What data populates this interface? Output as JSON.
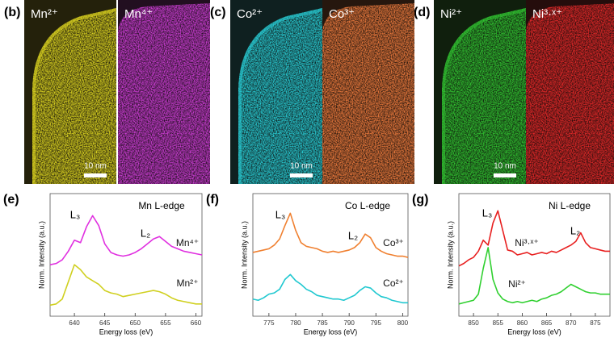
{
  "maps": [
    {
      "panel_label": "(b)",
      "images": [
        {
          "label": "Mn²⁺",
          "color": "#d8d020"
        },
        {
          "label": "Mn⁴⁺",
          "color": "#c83cd0"
        }
      ],
      "scale_bar": "10 nm"
    },
    {
      "panel_label": "(c)",
      "images": [
        {
          "label": "Co²⁺",
          "color": "#28c8d0"
        },
        {
          "label": "Co³⁺",
          "color": "#e8783c"
        }
      ],
      "scale_bar": "10 nm"
    },
    {
      "panel_label": "(d)",
      "images": [
        {
          "label": "Ni²⁺",
          "color": "#30c030"
        },
        {
          "label": "Ni³·ˣ⁺",
          "color": "#e02828"
        }
      ],
      "scale_bar": "10 nm"
    }
  ],
  "chart_data": [
    {
      "type": "line",
      "panel_label": "(e)",
      "title": "Mn L-edge",
      "x_label": "Energy loss (eV)",
      "y_label": "Norm. Intensity (a.u.)",
      "annotations": [
        "L₃",
        "L₂"
      ],
      "x": [
        636,
        637,
        638,
        639,
        640,
        641,
        642,
        643,
        644,
        645,
        646,
        647,
        648,
        649,
        650,
        651,
        652,
        653,
        654,
        655,
        656,
        657,
        658,
        659,
        660,
        661
      ],
      "xlim": [
        636,
        661
      ],
      "xticks": [
        640,
        645,
        650,
        655,
        660
      ],
      "ylim": [
        0,
        10
      ],
      "series": [
        {
          "name": "Mn⁴⁺",
          "color": "#e030e0",
          "values": [
            4.2,
            4.3,
            4.6,
            5.3,
            6.2,
            6.0,
            7.3,
            8.2,
            7.4,
            5.9,
            5.2,
            5.0,
            4.9,
            5.0,
            5.2,
            5.5,
            5.9,
            6.3,
            6.5,
            6.1,
            5.7,
            5.5,
            5.3,
            5.2,
            5.1,
            5.0
          ]
        },
        {
          "name": "Mn²⁺",
          "color": "#d0d020",
          "values": [
            0.9,
            1.0,
            1.4,
            2.8,
            4.2,
            3.8,
            3.2,
            2.9,
            2.6,
            2.1,
            1.9,
            1.8,
            1.6,
            1.7,
            1.8,
            1.9,
            2.0,
            2.1,
            2.0,
            1.8,
            1.5,
            1.3,
            1.2,
            1.1,
            1.0,
            1.0
          ]
        }
      ]
    },
    {
      "type": "line",
      "panel_label": "(f)",
      "title": "Co L-edge",
      "x_label": "Energy loss (eV)",
      "y_label": "Norm. Intensity (a.u.)",
      "annotations": [
        "L₃",
        "L₂"
      ],
      "x": [
        772,
        773,
        774,
        775,
        776,
        777,
        778,
        779,
        780,
        781,
        782,
        783,
        784,
        785,
        786,
        787,
        788,
        789,
        790,
        791,
        792,
        793,
        794,
        795,
        796,
        797,
        798,
        799,
        800,
        801
      ],
      "xlim": [
        772,
        801
      ],
      "xticks": [
        775,
        780,
        785,
        790,
        795,
        800
      ],
      "ylim": [
        0,
        10
      ],
      "series": [
        {
          "name": "Co³⁺",
          "color": "#f08030",
          "values": [
            5.2,
            5.3,
            5.4,
            5.5,
            5.8,
            6.3,
            7.4,
            8.4,
            7.0,
            6.0,
            5.7,
            5.6,
            5.5,
            5.3,
            5.2,
            5.3,
            5.2,
            5.3,
            5.4,
            5.6,
            6.0,
            6.7,
            6.4,
            5.6,
            5.3,
            5.1,
            5.0,
            4.9,
            4.9,
            4.8
          ]
        },
        {
          "name": "Co²⁺",
          "color": "#20c8d0",
          "values": [
            1.4,
            1.3,
            1.5,
            1.8,
            1.9,
            2.2,
            3.0,
            3.4,
            2.9,
            2.6,
            2.2,
            2.0,
            1.7,
            1.6,
            1.5,
            1.4,
            1.4,
            1.3,
            1.5,
            1.7,
            2.1,
            2.4,
            2.3,
            1.9,
            1.6,
            1.5,
            1.3,
            1.2,
            1.1,
            1.1
          ]
        }
      ]
    },
    {
      "type": "line",
      "panel_label": "(g)",
      "title": "Ni L-edge",
      "x_label": "Energy loss (eV)",
      "y_label": "Norm. Intensity (a.u.)",
      "annotations": [
        "L₃",
        "L₂"
      ],
      "x": [
        847,
        848,
        849,
        850,
        851,
        852,
        853,
        854,
        855,
        856,
        857,
        858,
        859,
        860,
        861,
        862,
        863,
        864,
        865,
        866,
        867,
        868,
        869,
        870,
        871,
        872,
        873,
        874,
        875,
        876,
        877,
        878
      ],
      "xlim": [
        847,
        878
      ],
      "xticks": [
        850,
        855,
        860,
        865,
        870,
        875
      ],
      "ylim": [
        0,
        10
      ],
      "series": [
        {
          "name": "Ni³·ˣ⁺",
          "color": "#e82020",
          "values": [
            4.1,
            4.3,
            4.6,
            4.8,
            5.3,
            6.2,
            5.8,
            7.6,
            8.6,
            7.0,
            5.4,
            5.3,
            5.0,
            5.1,
            5.2,
            5.0,
            5.1,
            5.2,
            5.1,
            5.3,
            5.2,
            5.4,
            5.6,
            5.8,
            6.1,
            6.8,
            6.0,
            5.6,
            5.5,
            5.4,
            5.3,
            5.3
          ]
        },
        {
          "name": "Ni²⁺",
          "color": "#30d030",
          "values": [
            1.0,
            1.1,
            1.2,
            1.3,
            1.8,
            3.9,
            5.6,
            3.0,
            1.9,
            1.4,
            1.2,
            1.1,
            1.2,
            1.1,
            1.2,
            1.3,
            1.2,
            1.4,
            1.5,
            1.7,
            1.8,
            2.0,
            2.3,
            2.6,
            2.4,
            2.2,
            2.0,
            1.9,
            1.9,
            1.8,
            1.8,
            1.8
          ]
        }
      ]
    }
  ]
}
